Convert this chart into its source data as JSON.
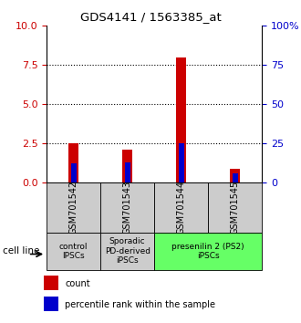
{
  "title": "GDS4141 / 1563385_at",
  "samples": [
    "GSM701542",
    "GSM701543",
    "GSM701544",
    "GSM701545"
  ],
  "count_values": [
    2.5,
    2.1,
    8.0,
    0.9
  ],
  "percentile_values": [
    12,
    13,
    25,
    6
  ],
  "left_ylim": [
    0,
    10
  ],
  "right_ylim": [
    0,
    100
  ],
  "left_yticks": [
    0,
    2.5,
    5,
    7.5,
    10
  ],
  "right_yticks": [
    0,
    25,
    50,
    75,
    100
  ],
  "right_yticklabels": [
    "0",
    "25",
    "50",
    "75",
    "100%"
  ],
  "gridlines": [
    2.5,
    5,
    7.5
  ],
  "bar_width": 0.18,
  "count_color": "#cc0000",
  "percentile_color": "#0000cc",
  "group_configs": [
    {
      "sample_indices": [
        0
      ],
      "label": "control\nIPSCs",
      "color": "#cccccc"
    },
    {
      "sample_indices": [
        1
      ],
      "label": "Sporadic\nPD-derived\niPSCs",
      "color": "#cccccc"
    },
    {
      "sample_indices": [
        2,
        3
      ],
      "label": "presenilin 2 (PS2)\niPSCs",
      "color": "#66ff66"
    }
  ],
  "sample_box_color": "#cccccc",
  "cell_line_label": "cell line",
  "legend_count": "count",
  "legend_percentile": "percentile rank within the sample",
  "plot_bg": "#ffffff"
}
